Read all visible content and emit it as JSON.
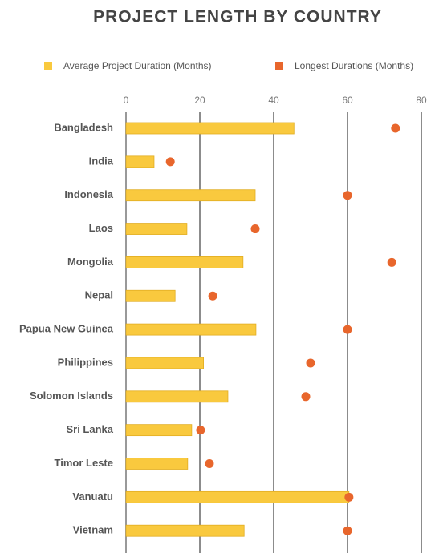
{
  "chart_data": {
    "type": "bar",
    "title": "PROJECT LENGTH BY COUNTRY",
    "categories": [
      "Bangladesh",
      "India",
      "Indonesia",
      "Laos",
      "Mongolia",
      "Nepal",
      "Papua New Guinea",
      "Philippines",
      "Solomon Islands",
      "Sri Lanka",
      "Timor Leste",
      "Vanuatu",
      "Vietnam"
    ],
    "series": [
      {
        "name": "Average Project Duration (Months)",
        "color": "#f9c93e",
        "values": [
          45.5,
          7.6,
          35,
          16.5,
          31.7,
          13.3,
          35.2,
          21,
          27.6,
          17.8,
          16.7,
          60.4,
          32
        ]
      },
      {
        "name": "Longest Durations (Months)",
        "color": "#e8662c",
        "values": [
          73,
          12,
          60,
          35,
          72,
          23.5,
          60,
          50,
          48.7,
          20.2,
          22.6,
          60.4,
          60
        ]
      }
    ],
    "xlim": [
      0,
      80
    ],
    "xticks": [
      0,
      20,
      40,
      60,
      80
    ],
    "grid": true
  }
}
